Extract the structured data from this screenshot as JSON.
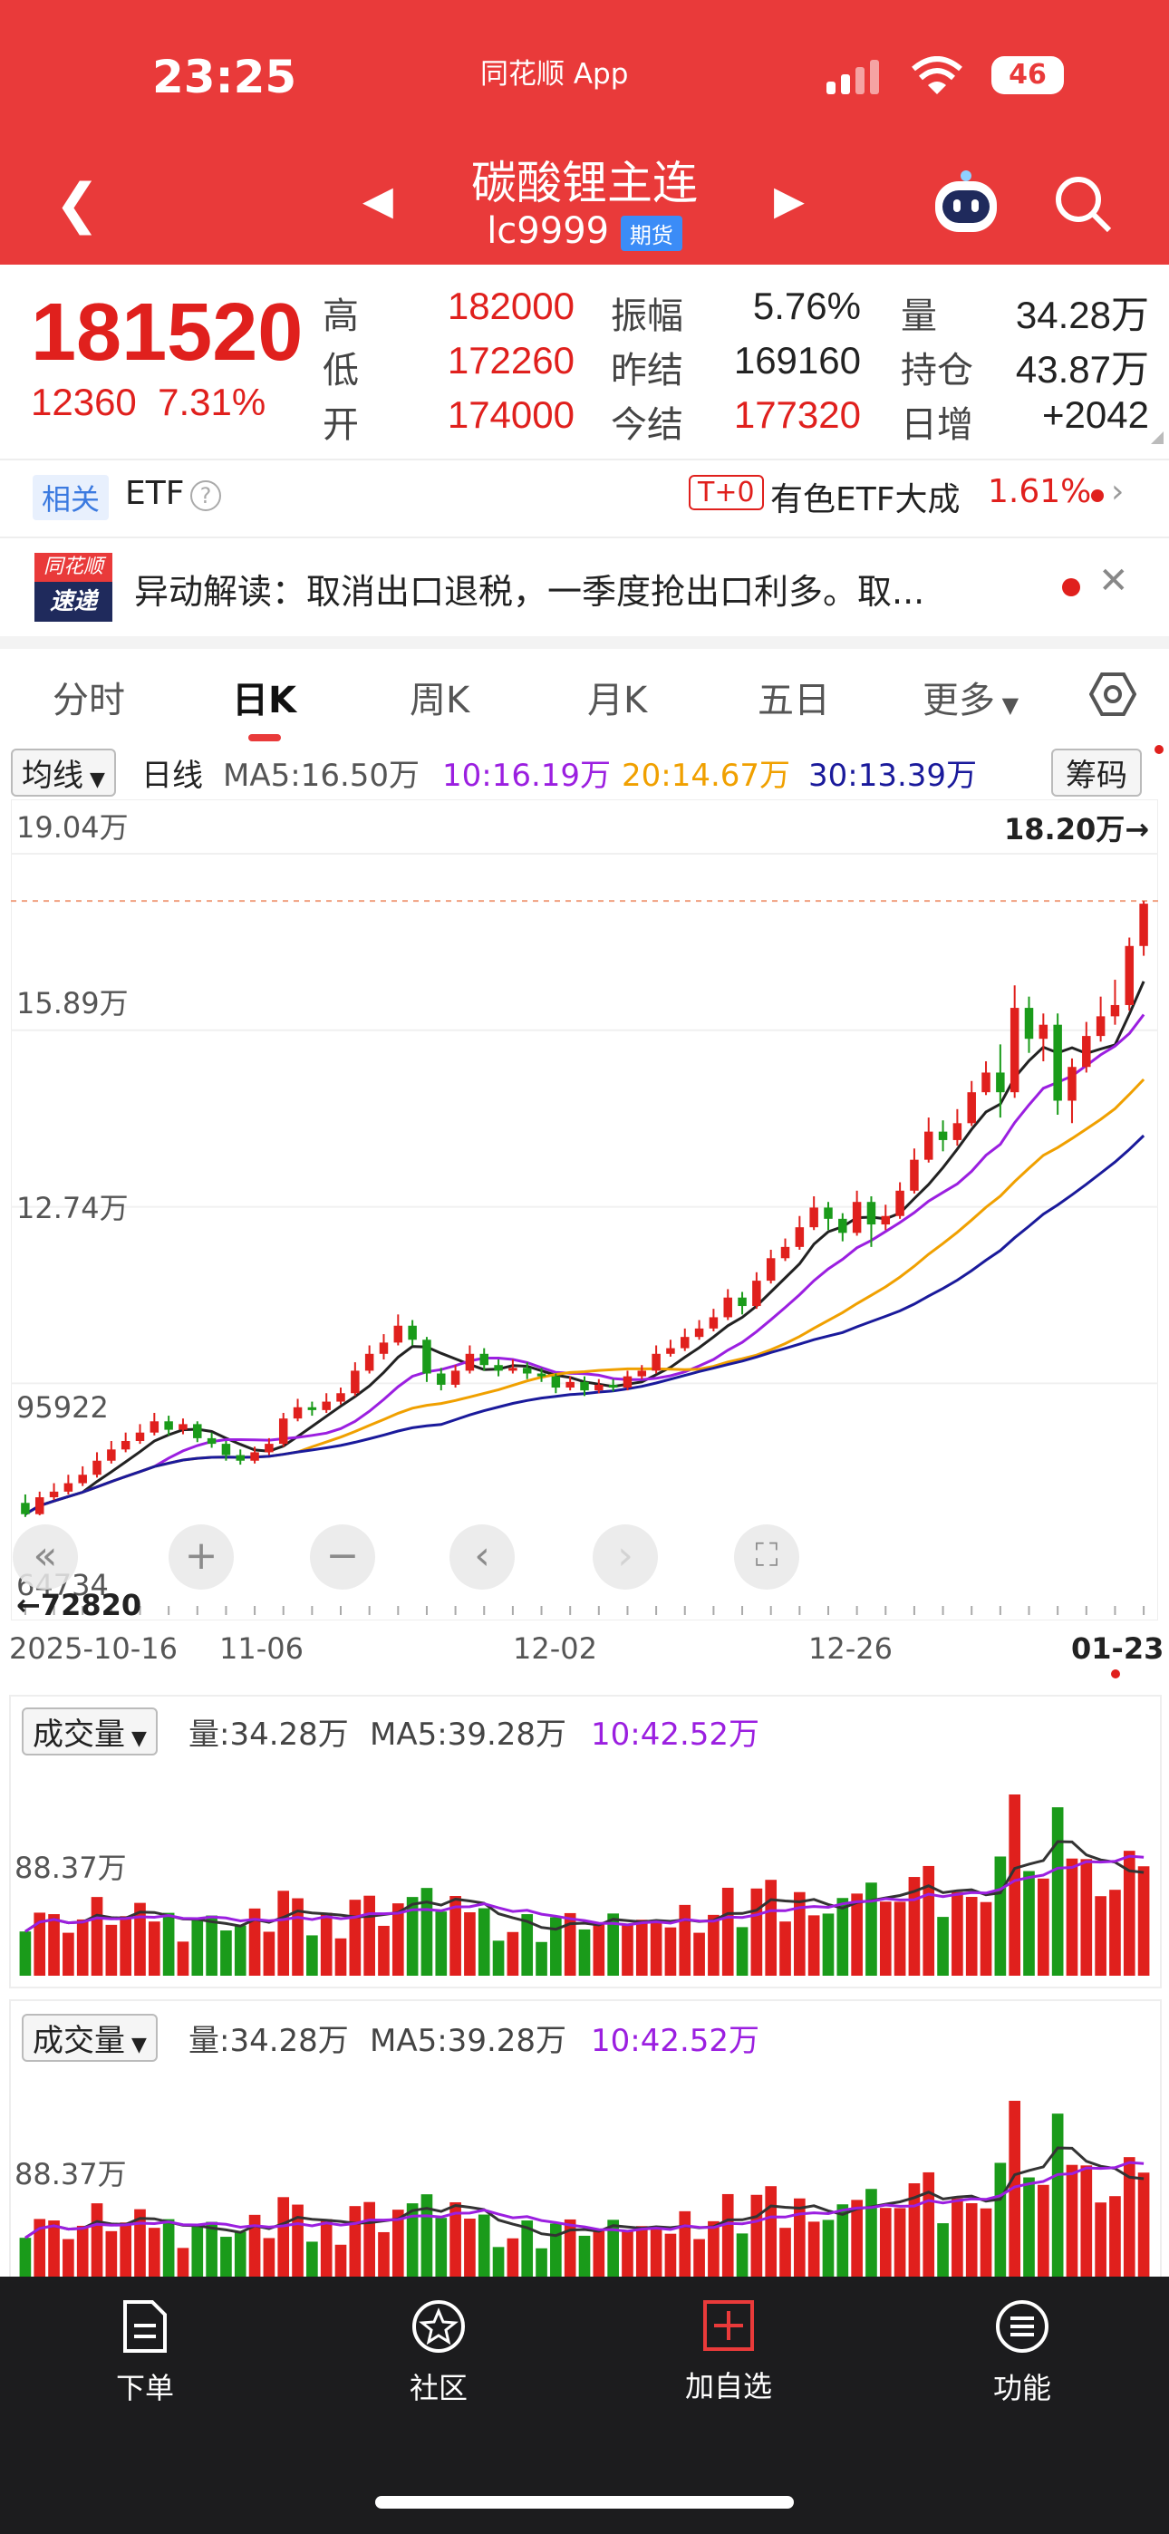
{
  "status": {
    "time": "23:25",
    "app": "同花顺 App",
    "battery": "46"
  },
  "header": {
    "title": "碳酸锂主连",
    "code": "lc9999",
    "tag": "期货"
  },
  "quote": {
    "price": "181520",
    "change": "12360",
    "change_pct": "7.31%",
    "labels": {
      "high": "高",
      "low": "低",
      "open": "开",
      "amp": "振幅",
      "prev": "昨结",
      "today": "今结",
      "vol": "量",
      "oi": "持仓",
      "inc": "日增"
    },
    "high": "182000",
    "low": "172260",
    "open": "174000",
    "amplitude": "5.76%",
    "prev_settle": "169160",
    "today_settle": "177320",
    "volume": "34.28万",
    "open_interest": "43.87万",
    "daily_increase": "+2042"
  },
  "related": {
    "label": "相关",
    "name": "ETF",
    "tplus": "T+0",
    "etf": "有色ETF大成",
    "etf_pct": "1.61%"
  },
  "news": {
    "badge_top": "同花顺",
    "badge_bottom": "速递",
    "text": "异动解读：取消出口退税，一季度抢出口利多。取..."
  },
  "tabs": [
    "分时",
    "日K",
    "周K",
    "月K",
    "五日",
    "更多"
  ],
  "ma": {
    "selector": "均线",
    "period": "日线",
    "ma5": "MA5:16.50万",
    "ma10": "10:16.19万",
    "ma20": "20:14.67万",
    "ma30": "30:13.39万",
    "chips": "筹码"
  },
  "chart_labels": {
    "y1": "19.04万",
    "y2": "15.89万",
    "y3": "12.74万",
    "y4": "95922",
    "y5": "64734",
    "max": "18.20万→",
    "min": "←72820",
    "x": [
      "2025-10-16",
      "11-06",
      "12-02",
      "12-26",
      "01-23"
    ]
  },
  "volume_panel": {
    "selector": "成交量",
    "vol": "量:34.28万",
    "ma5": "MA5:39.28万",
    "ma10": "10:42.52万",
    "ylab": "88.37万"
  },
  "bottom": [
    "下单",
    "社区",
    "加自选",
    "功能"
  ],
  "colors": {
    "up": "#e0201d",
    "down": "#1a9b1a",
    "header": "#e93a3a"
  },
  "chart_data": {
    "type": "candlestick",
    "ylim": [
      64734,
      190400
    ],
    "candles": [
      [
        75000,
        73000,
        76500,
        72500
      ],
      [
        73000,
        76000,
        77000,
        72800
      ],
      [
        76000,
        77000,
        78500,
        75500
      ],
      [
        77000,
        78500,
        80000,
        76500
      ],
      [
        78500,
        80000,
        81500,
        78000
      ],
      [
        80000,
        82500,
        84000,
        79500
      ],
      [
        82500,
        84500,
        86000,
        82000
      ],
      [
        84500,
        86000,
        87500,
        84000
      ],
      [
        86000,
        87500,
        89000,
        85500
      ],
      [
        87500,
        89500,
        91000,
        87000
      ],
      [
        89500,
        88000,
        90500,
        87000
      ],
      [
        88000,
        89000,
        90000,
        87200
      ],
      [
        89000,
        86500,
        89500,
        85800
      ],
      [
        86500,
        85500,
        87500,
        84800
      ],
      [
        85500,
        83500,
        86000,
        82500
      ],
      [
        83500,
        82500,
        84500,
        81800
      ],
      [
        82500,
        84000,
        85000,
        82000
      ],
      [
        84000,
        85500,
        86500,
        83500
      ],
      [
        85500,
        90000,
        91000,
        85000
      ],
      [
        90000,
        92000,
        93500,
        89500
      ],
      [
        92000,
        91500,
        93000,
        90500
      ],
      [
        91500,
        93000,
        94500,
        91000
      ],
      [
        93000,
        94500,
        95500,
        92500
      ],
      [
        94500,
        98500,
        100000,
        94000
      ],
      [
        98500,
        101500,
        103000,
        98000
      ],
      [
        101500,
        103500,
        105000,
        100500
      ],
      [
        103500,
        106500,
        108500,
        103000
      ],
      [
        106500,
        104000,
        107500,
        103000
      ],
      [
        104000,
        98000,
        104500,
        96500
      ],
      [
        98000,
        96000,
        99000,
        95000
      ],
      [
        96000,
        98500,
        99500,
        95500
      ],
      [
        98500,
        101500,
        103000,
        98000
      ],
      [
        101500,
        99500,
        102500,
        98500
      ],
      [
        99500,
        98500,
        100500,
        97500
      ],
      [
        98500,
        99000,
        100500,
        98000
      ],
      [
        99000,
        98000,
        100000,
        97000
      ],
      [
        98000,
        97500,
        99000,
        96500
      ],
      [
        97500,
        95500,
        98000,
        94500
      ],
      [
        95500,
        96500,
        97500,
        95000
      ],
      [
        96500,
        95000,
        97500,
        94000
      ],
      [
        95000,
        96000,
        97000,
        94500
      ],
      [
        96000,
        95500,
        97000,
        94800
      ],
      [
        95500,
        97500,
        98500,
        95000
      ],
      [
        97500,
        98500,
        99500,
        97000
      ],
      [
        98500,
        101500,
        103000,
        98000
      ],
      [
        101500,
        102500,
        104000,
        101000
      ],
      [
        102500,
        104500,
        106000,
        102000
      ],
      [
        104500,
        106000,
        107500,
        104000
      ],
      [
        106000,
        108000,
        109500,
        105500
      ],
      [
        108000,
        111500,
        113000,
        107500
      ],
      [
        111500,
        110000,
        112500,
        108500
      ],
      [
        110000,
        114500,
        116000,
        109500
      ],
      [
        114500,
        118500,
        120000,
        114000
      ],
      [
        118500,
        120500,
        122000,
        118000
      ],
      [
        120500,
        124000,
        126000,
        120000
      ],
      [
        124000,
        127500,
        129500,
        123500
      ],
      [
        127500,
        125500,
        128500,
        123500
      ],
      [
        125500,
        123000,
        126500,
        121500
      ],
      [
        123000,
        128500,
        130500,
        122500
      ],
      [
        128500,
        124500,
        129500,
        120500
      ],
      [
        124500,
        126000,
        128000,
        123500
      ],
      [
        126000,
        130500,
        132000,
        125500
      ],
      [
        130500,
        136000,
        138000,
        130000
      ],
      [
        136000,
        141000,
        143500,
        135500
      ],
      [
        141000,
        139500,
        143000,
        137500
      ],
      [
        139500,
        142500,
        145000,
        138500
      ],
      [
        142500,
        148000,
        150000,
        142000
      ],
      [
        148000,
        151500,
        153500,
        147500
      ],
      [
        151500,
        148000,
        156500,
        143500
      ],
      [
        148000,
        163000,
        167000,
        147000
      ],
      [
        163000,
        157500,
        165000,
        155000
      ],
      [
        157500,
        160000,
        162000,
        153500
      ],
      [
        160000,
        146500,
        162000,
        144000
      ],
      [
        146500,
        152500,
        154000,
        142500
      ],
      [
        152500,
        158000,
        160500,
        151500
      ],
      [
        158000,
        161500,
        165000,
        157000
      ],
      [
        161500,
        163500,
        168000,
        160000
      ],
      [
        163500,
        174000,
        175500,
        162500
      ],
      [
        174000,
        181520,
        182000,
        172260
      ]
    ]
  }
}
